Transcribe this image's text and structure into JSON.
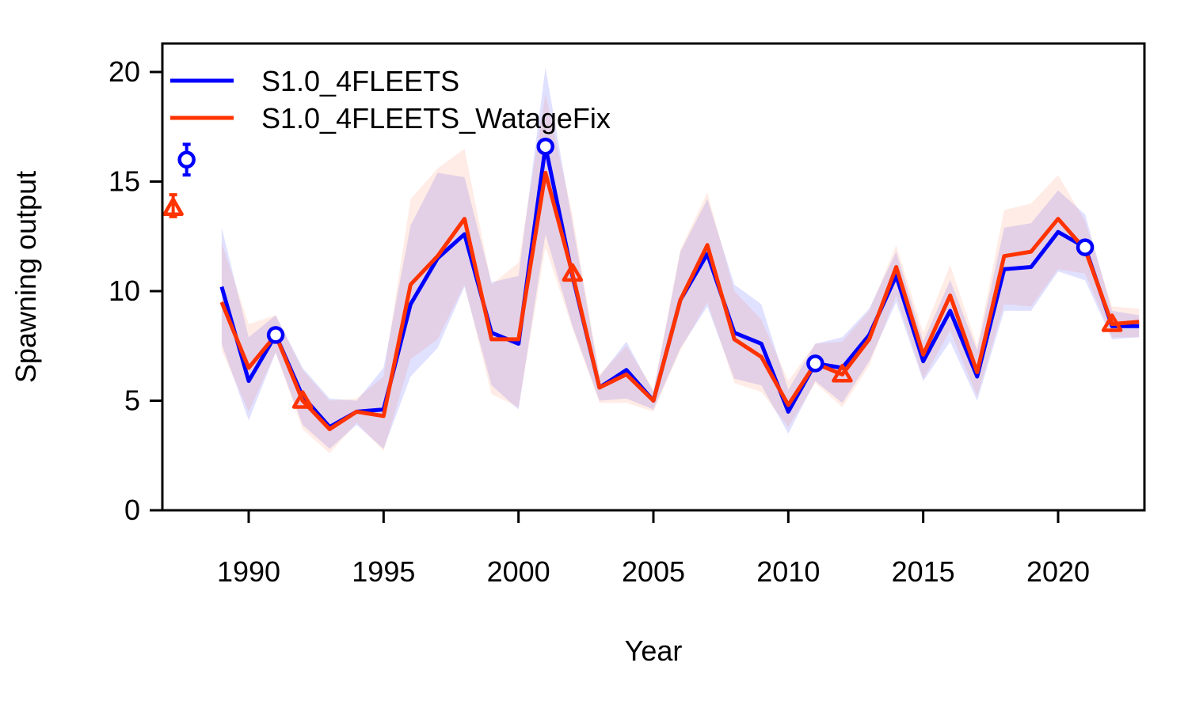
{
  "chart_data": {
    "type": "line",
    "xlabel": "Year",
    "ylabel": "Spawning output",
    "xlim": [
      1986.8,
      2023.2
    ],
    "ylim": [
      0,
      21.3
    ],
    "x_ticks": [
      1990,
      1995,
      2000,
      2005,
      2010,
      2015,
      2020
    ],
    "x_tick_labels": [
      "1990",
      "1995",
      "2000",
      "2005",
      "2010",
      "2015",
      "2020"
    ],
    "y_ticks": [
      0,
      5,
      10,
      15,
      20
    ],
    "y_tick_labels": [
      "0",
      "5",
      "10",
      "15",
      "20"
    ],
    "legend_position": "top-left",
    "series": [
      {
        "name": "S1.0_4FLEETS",
        "color": "#0000ff",
        "band_color": "#0000ff",
        "marker": "circle",
        "x": [
          1989,
          1990,
          1991,
          1992,
          1993,
          1994,
          1995,
          1996,
          1997,
          1998,
          1999,
          2000,
          2001,
          2002,
          2003,
          2004,
          2005,
          2006,
          2007,
          2008,
          2009,
          2010,
          2011,
          2012,
          2013,
          2014,
          2015,
          2016,
          2017,
          2018,
          2019,
          2020,
          2021,
          2022,
          2023
        ],
        "values": [
          10.2,
          5.9,
          8.0,
          5.2,
          3.8,
          4.5,
          4.6,
          9.4,
          11.5,
          12.6,
          8.1,
          7.6,
          16.6,
          10.7,
          5.6,
          6.4,
          5.0,
          9.6,
          11.7,
          8.1,
          7.6,
          4.5,
          6.7,
          6.5,
          8.0,
          10.7,
          6.8,
          9.1,
          6.1,
          11.0,
          11.1,
          12.7,
          12.0,
          8.4,
          8.4
        ],
        "lower": [
          7.6,
          4.1,
          7.2,
          3.9,
          2.8,
          3.9,
          2.8,
          6.1,
          7.4,
          10.2,
          5.7,
          4.6,
          12.6,
          8.4,
          5.0,
          5.1,
          4.6,
          7.4,
          9.3,
          6.0,
          5.7,
          3.5,
          5.9,
          4.9,
          6.8,
          9.5,
          5.9,
          7.7,
          5.0,
          9.1,
          9.1,
          10.9,
          10.5,
          7.8,
          7.9
        ],
        "upper": [
          12.9,
          7.9,
          8.9,
          6.5,
          5.1,
          5.0,
          6.5,
          13.0,
          15.4,
          15.2,
          10.4,
          10.7,
          20.2,
          13.1,
          6.1,
          7.7,
          5.4,
          11.8,
          14.2,
          10.3,
          9.4,
          5.5,
          7.6,
          7.9,
          9.2,
          11.8,
          7.7,
          10.5,
          7.3,
          12.9,
          13.1,
          14.6,
          13.5,
          9.1,
          8.9
        ],
        "marker_points": [
          {
            "x": 1991,
            "y": 8.0
          },
          {
            "x": 2001,
            "y": 16.6
          },
          {
            "x": 2011,
            "y": 6.7
          },
          {
            "x": 2021,
            "y": 12.0
          }
        ],
        "virgin": {
          "x": 1987.7,
          "y": 16.0,
          "lower": 15.3,
          "upper": 16.7
        }
      },
      {
        "name": "S1.0_4FLEETS_WatageFix",
        "color": "#ff3300",
        "band_color": "#ff6633",
        "marker": "triangle",
        "x": [
          1989,
          1990,
          1991,
          1992,
          1993,
          1994,
          1995,
          1996,
          1997,
          1998,
          1999,
          2000,
          2001,
          2002,
          2003,
          2004,
          2005,
          2006,
          2007,
          2008,
          2009,
          2010,
          2011,
          2012,
          2013,
          2014,
          2015,
          2016,
          2017,
          2018,
          2019,
          2020,
          2021,
          2022,
          2023
        ],
        "values": [
          9.5,
          6.5,
          8.0,
          5.0,
          3.7,
          4.5,
          4.3,
          10.3,
          11.6,
          13.3,
          7.8,
          7.8,
          15.4,
          10.8,
          5.6,
          6.2,
          5.0,
          9.6,
          12.1,
          7.8,
          7.0,
          4.8,
          6.7,
          6.2,
          7.8,
          11.1,
          7.1,
          9.8,
          6.3,
          11.6,
          11.8,
          13.3,
          11.9,
          8.5,
          8.6
        ],
        "lower": [
          7.3,
          4.5,
          7.2,
          3.7,
          2.6,
          4.0,
          2.7,
          6.9,
          7.8,
          10.3,
          5.3,
          4.7,
          12.0,
          8.3,
          4.9,
          4.9,
          4.5,
          7.3,
          9.5,
          5.8,
          5.4,
          3.8,
          5.8,
          4.7,
          6.6,
          9.8,
          6.0,
          8.2,
          5.2,
          9.4,
          9.3,
          11.0,
          10.8,
          7.9,
          7.9
        ],
        "upper": [
          12.2,
          8.5,
          8.9,
          6.4,
          5.0,
          5.1,
          6.1,
          14.2,
          15.6,
          16.5,
          10.3,
          11.3,
          19.0,
          13.5,
          6.2,
          7.5,
          5.5,
          11.9,
          14.5,
          10.0,
          8.7,
          5.9,
          7.6,
          7.7,
          9.1,
          12.1,
          8.1,
          11.2,
          7.5,
          13.7,
          14.0,
          15.3,
          13.2,
          9.3,
          9.2
        ],
        "marker_points": [
          {
            "x": 1992,
            "y": 5.0
          },
          {
            "x": 2002,
            "y": 10.8
          },
          {
            "x": 2012,
            "y": 6.2
          },
          {
            "x": 2022,
            "y": 8.5
          }
        ],
        "virgin": {
          "x": 1987.2,
          "y": 13.8,
          "lower": 13.4,
          "upper": 14.4
        }
      }
    ]
  }
}
